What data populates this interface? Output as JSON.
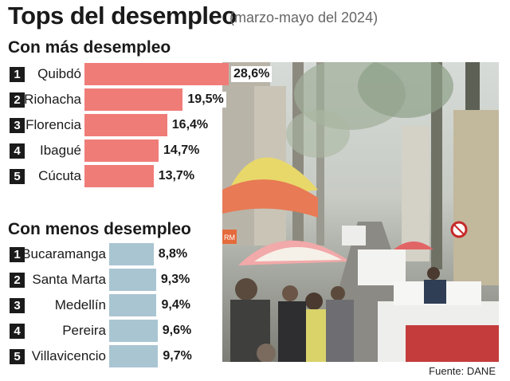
{
  "chart_data": [
    {
      "type": "bar",
      "orientation": "horizontal",
      "title": "Tops del desempleo",
      "subtitle": "(marzo-mayo del 2024)",
      "section_title": "Con más desempleo",
      "ranks": [
        "1",
        "2",
        "3",
        "4",
        "5"
      ],
      "categories": [
        "Quibdó",
        "Riohacha",
        "Florencia",
        "Ibagué",
        "Cúcuta"
      ],
      "values": [
        28.6,
        19.5,
        16.4,
        14.7,
        13.7
      ],
      "value_labels": [
        "28,6%",
        "19,5%",
        "16,4%",
        "14,7%",
        "13,7%"
      ],
      "color": "#f07c78",
      "xlim": [
        0,
        30
      ]
    },
    {
      "type": "bar",
      "orientation": "horizontal",
      "section_title": "Con menos desempleo",
      "ranks": [
        "1",
        "2",
        "3",
        "4",
        "5"
      ],
      "categories": [
        "Bucaramanga",
        "Santa Marta",
        "Medellín",
        "Pereira",
        "Villavicencio"
      ],
      "values": [
        8.8,
        9.3,
        9.4,
        9.6,
        9.7
      ],
      "value_labels": [
        "8,8%",
        "9,3%",
        "9,4%",
        "9,6%",
        "9,7%"
      ],
      "color": "#a9c5d2",
      "xlim": [
        0,
        30
      ]
    }
  ],
  "source": "Fuente: DANE",
  "photo_sign": "RM"
}
